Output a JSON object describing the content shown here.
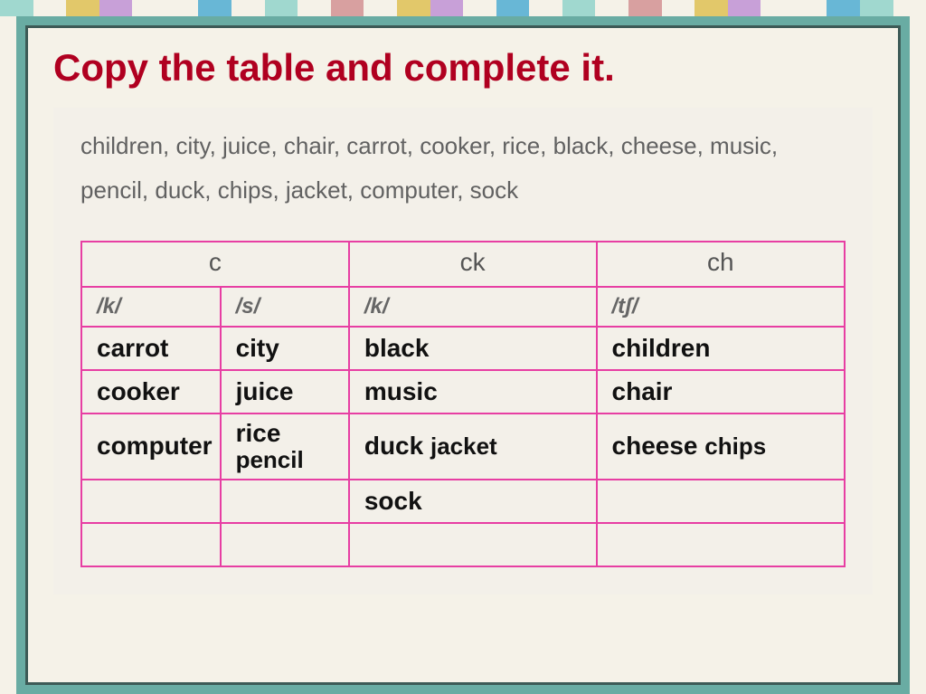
{
  "stripes": [
    "#a0d8cf",
    "#f5f2e8",
    "#e2c86a",
    "#c8a0d8",
    "#f5f2e8",
    "#f5f2e8",
    "#68b7d6",
    "#f5f2e8",
    "#a0d8cf",
    "#f5f2e8",
    "#d8a0a0",
    "#f5f2e8",
    "#e2c86a",
    "#c8a0d8",
    "#f5f2e8",
    "#68b7d6",
    "#f5f2e8",
    "#a0d8cf",
    "#f5f2e8",
    "#d8a0a0",
    "#f5f2e8",
    "#e2c86a",
    "#c8a0d8",
    "#f5f2e8",
    "#f5f2e8",
    "#68b7d6",
    "#a0d8cf",
    "#f5f2e8"
  ],
  "title": "Copy the table and complete it.",
  "wordlist": "children, city, juice, chair, carrot, cooker, rice, black, cheese, music, pencil, duck, chips, jacket, computer, sock",
  "headers": {
    "c": "c",
    "ck": "ck",
    "ch": "ch"
  },
  "sounds": {
    "k1": "/k/",
    "s": "/s/",
    "k2": "/k/",
    "tf": "/tʃ/"
  },
  "cols": {
    "c_k": [
      "carrot",
      "cooker",
      "computer",
      "",
      ""
    ],
    "c_s": [
      "city",
      "juice",
      "rice",
      "pencil",
      ""
    ],
    "ck": [
      "black",
      "music",
      "duck",
      "jacket",
      "sock"
    ],
    "ch": [
      "children",
      "chair",
      "cheese",
      "chips",
      ""
    ]
  }
}
